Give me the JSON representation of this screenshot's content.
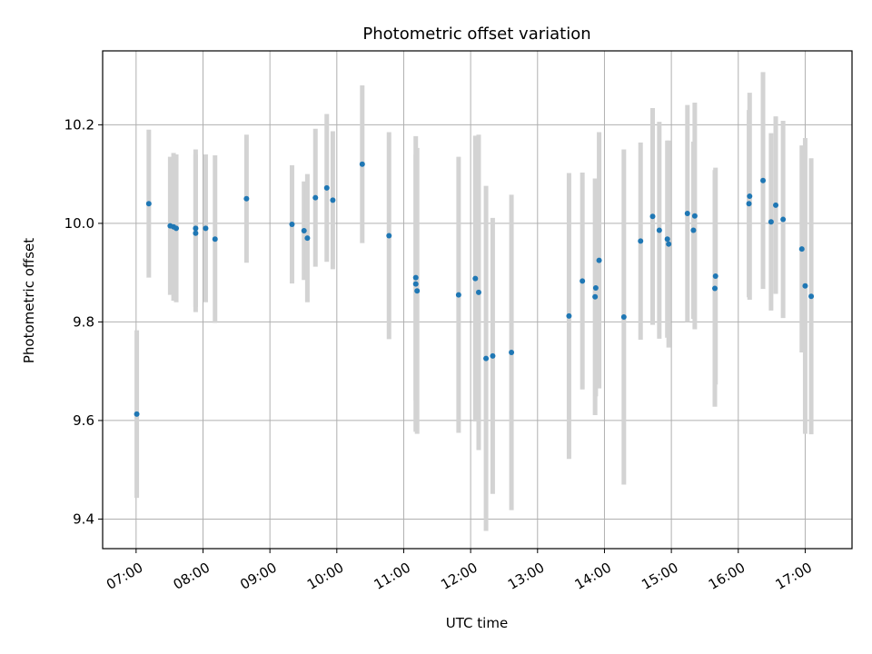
{
  "chart_data": {
    "type": "scatter",
    "title": "Photometric offset variation",
    "xlabel": "UTC time",
    "ylabel": "Photometric offset",
    "x_unit": "hour",
    "xlim": [
      6.5,
      17.7
    ],
    "ylim": [
      9.34,
      10.35
    ],
    "x_ticks": [
      {
        "value": 7,
        "label": "07:00"
      },
      {
        "value": 8,
        "label": "08:00"
      },
      {
        "value": 9,
        "label": "09:00"
      },
      {
        "value": 10,
        "label": "10:00"
      },
      {
        "value": 11,
        "label": "11:00"
      },
      {
        "value": 12,
        "label": "12:00"
      },
      {
        "value": 13,
        "label": "13:00"
      },
      {
        "value": 14,
        "label": "14:00"
      },
      {
        "value": 15,
        "label": "15:00"
      },
      {
        "value": 16,
        "label": "16:00"
      },
      {
        "value": 17,
        "label": "17:00"
      }
    ],
    "y_ticks": [
      {
        "value": 9.4,
        "label": "9.4"
      },
      {
        "value": 9.6,
        "label": "9.6"
      },
      {
        "value": 9.8,
        "label": "9.8"
      },
      {
        "value": 10.0,
        "label": "10.0"
      },
      {
        "value": 10.2,
        "label": "10.2"
      }
    ],
    "grid": true,
    "colors": {
      "points": "#1f77b4",
      "errorbars": "#d3d3d3",
      "grid": "#b0b0b0"
    },
    "series": [
      {
        "x": [
          7.01,
          7.19,
          7.51,
          7.56,
          7.6,
          7.89,
          7.89,
          8.04,
          8.18,
          8.65,
          9.33,
          9.51,
          9.56,
          9.68,
          9.85,
          9.94,
          10.38,
          10.78,
          11.18,
          11.18,
          11.2,
          11.82,
          12.07,
          12.12,
          12.23,
          12.33,
          12.61,
          13.47,
          13.67,
          13.86,
          13.87,
          13.92,
          14.29,
          14.54,
          14.72,
          14.82,
          14.94,
          14.96,
          15.24,
          15.33,
          15.35,
          15.65,
          15.66,
          16.16,
          16.17,
          16.37,
          16.49,
          16.56,
          16.67,
          16.95,
          17.0,
          17.09
        ],
        "y": [
          9.613,
          10.04,
          9.995,
          9.993,
          9.99,
          9.99,
          9.98,
          9.99,
          9.968,
          10.05,
          9.998,
          9.985,
          9.97,
          10.052,
          10.072,
          10.047,
          10.12,
          9.975,
          9.89,
          9.877,
          9.863,
          9.855,
          9.888,
          9.86,
          9.726,
          9.731,
          9.738,
          9.812,
          9.883,
          9.851,
          9.869,
          9.925,
          9.81,
          9.964,
          10.014,
          9.986,
          9.968,
          9.958,
          10.02,
          9.986,
          10.015,
          9.868,
          9.893,
          10.04,
          10.055,
          10.087,
          10.003,
          10.037,
          10.008,
          9.948,
          9.873,
          9.852
        ],
        "yerr": [
          0.17,
          0.15,
          0.14,
          0.15,
          0.15,
          0.16,
          0.16,
          0.15,
          0.17,
          0.13,
          0.12,
          0.1,
          0.13,
          0.14,
          0.15,
          0.14,
          0.16,
          0.21,
          0.25,
          0.3,
          0.29,
          0.28,
          0.29,
          0.32,
          0.35,
          0.28,
          0.32,
          0.29,
          0.22,
          0.24,
          0.22,
          0.26,
          0.34,
          0.2,
          0.22,
          0.22,
          0.2,
          0.21,
          0.22,
          0.18,
          0.23,
          0.24,
          0.22,
          0.19,
          0.21,
          0.22,
          0.18,
          0.18,
          0.2,
          0.21,
          0.3,
          0.28
        ]
      }
    ]
  }
}
